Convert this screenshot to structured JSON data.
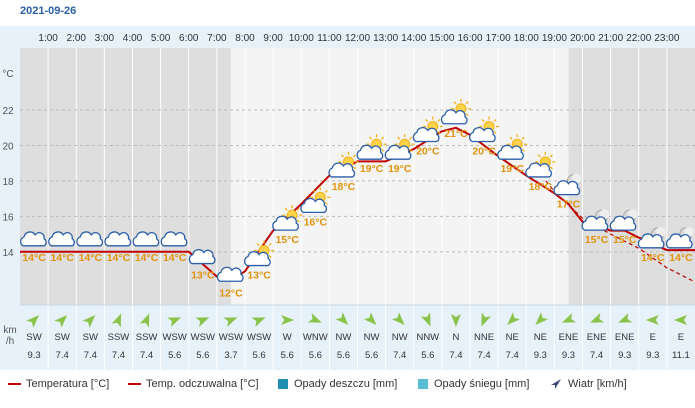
{
  "date": "2021-09-26",
  "colors": {
    "temperature": "#c00000",
    "felt": "#c00000",
    "rain": "#1f8fb0",
    "snow": "#5bbcd6",
    "wind": "#3a4a78",
    "panel": "#e6f1fa",
    "night": "#dedede",
    "day": "#f4f4f4",
    "arrow": "#8bc34a",
    "label": "#e0930c"
  },
  "chart_data": {
    "type": "line",
    "hours": [
      "1:00",
      "2:00",
      "3:00",
      "4:00",
      "5:00",
      "6:00",
      "7:00",
      "8:00",
      "9:00",
      "10:00",
      "11:00",
      "12:00",
      "13:00",
      "14:00",
      "15:00",
      "16:00",
      "17:00",
      "18:00",
      "19:00",
      "20:00",
      "21:00",
      "22:00",
      "23:00"
    ],
    "y_unit": "°C",
    "y_ticks": [
      14,
      16,
      18,
      20,
      22
    ],
    "ylim": [
      11,
      25.5
    ],
    "xlim": [
      0,
      24
    ],
    "grid": true,
    "series": [
      {
        "name": "Temperatura [°C]",
        "style": "solid",
        "x": [
          0,
          1,
          2,
          3,
          4,
          5,
          6,
          7,
          7.5,
          8,
          9,
          10,
          11,
          12,
          13,
          14,
          15,
          15.5,
          16,
          17,
          18,
          19,
          19.5,
          20,
          21,
          21.5,
          22,
          23,
          24
        ],
        "values": [
          14,
          14,
          14,
          14,
          14,
          14,
          14,
          12.6,
          12.4,
          12.9,
          15.2,
          16.7,
          18.3,
          19.1,
          19.1,
          19.8,
          20.8,
          21.0,
          20.6,
          19.4,
          18.3,
          17.3,
          16.7,
          15.7,
          15.2,
          15.2,
          14.8,
          14.1,
          14.1
        ]
      },
      {
        "name": "Temp. odczuwalna [°C]",
        "style": "dashed",
        "x": [
          18.7,
          19,
          20,
          21,
          22,
          23,
          24
        ],
        "values": [
          18.0,
          17.4,
          15.9,
          15.0,
          14.2,
          13.1,
          12.3
        ]
      }
    ],
    "point_labels": [
      {
        "x": 0.5,
        "value": 14,
        "label": "14°C",
        "icon": "partly-cloudy-icon"
      },
      {
        "x": 1.5,
        "value": 14,
        "label": "14°C",
        "icon": "cloud-icon"
      },
      {
        "x": 2.5,
        "value": 14,
        "label": "14°C",
        "icon": "cloud-icon"
      },
      {
        "x": 3.5,
        "value": 14,
        "label": "14°C",
        "icon": "cloud-icon"
      },
      {
        "x": 4.5,
        "value": 14,
        "label": "14°C",
        "icon": "cloud-icon"
      },
      {
        "x": 5.5,
        "value": 14,
        "label": "14°C",
        "icon": "cloud-icon"
      },
      {
        "x": 6.5,
        "value": 13,
        "label": "13°C",
        "icon": "cloud-icon"
      },
      {
        "x": 7.5,
        "value": 12,
        "label": "12°C",
        "icon": "cloud-icon"
      },
      {
        "x": 8.5,
        "value": 13,
        "label": "13°C",
        "icon": "sun-cloud-icon"
      },
      {
        "x": 9.5,
        "value": 15,
        "label": "15°C",
        "icon": "sun-cloud-icon"
      },
      {
        "x": 10.5,
        "value": 16,
        "label": "16°C",
        "icon": "sun-cloud-icon"
      },
      {
        "x": 11.5,
        "value": 18,
        "label": "18°C",
        "icon": "sun-cloud-icon"
      },
      {
        "x": 12.5,
        "value": 19,
        "label": "19°C",
        "icon": "sun-cloud-icon"
      },
      {
        "x": 13.5,
        "value": 19,
        "label": "19°C",
        "icon": "sun-cloud-icon"
      },
      {
        "x": 14.5,
        "value": 20,
        "label": "20°C",
        "icon": "sun-cloud-icon"
      },
      {
        "x": 15.5,
        "value": 21,
        "label": "21°C",
        "icon": "sun-cloud-icon"
      },
      {
        "x": 16.5,
        "value": 20,
        "label": "20°C",
        "icon": "sun-cloud-icon"
      },
      {
        "x": 17.5,
        "value": 19,
        "label": "19°C",
        "icon": "sun-cloud-icon"
      },
      {
        "x": 18.5,
        "value": 18,
        "label": "18°C",
        "icon": "sun-cloud-icon"
      },
      {
        "x": 19.5,
        "value": 17,
        "label": "17°C",
        "icon": "moon-cloud-icon"
      },
      {
        "x": 20.5,
        "value": 15,
        "label": "15°C",
        "icon": "moon-cloud-icon"
      },
      {
        "x": 21.5,
        "value": 15,
        "label": "15°C",
        "icon": "moon-cloud-icon"
      },
      {
        "x": 22.5,
        "value": 14,
        "label": "14°C",
        "icon": "moon-cloud-icon"
      },
      {
        "x": 23.5,
        "value": 14,
        "label": "14°C",
        "icon": "moon-cloud-icon"
      }
    ],
    "wind": {
      "unit": "km\n/h",
      "directions": [
        "SW",
        "SW",
        "SW",
        "SSW",
        "SSW",
        "WSW",
        "WSW",
        "WSW",
        "WSW",
        "W",
        "WNW",
        "NW",
        "NW",
        "NW",
        "NNW",
        "N",
        "NNE",
        "NE",
        "NE",
        "ENE",
        "ENE",
        "ENE",
        "E",
        "E"
      ],
      "speeds": [
        9.3,
        7.4,
        7.4,
        7.4,
        7.4,
        5.6,
        5.6,
        3.7,
        5.6,
        5.6,
        5.6,
        5.6,
        5.6,
        7.4,
        5.6,
        7.4,
        7.4,
        7.4,
        9.3,
        9.3,
        7.4,
        9.3,
        9.3,
        11.1
      ]
    }
  },
  "legend": [
    {
      "label": "Temperatura [°C]",
      "swatch": "line"
    },
    {
      "label": "Temp. odczuwalna [°C]",
      "swatch": "line"
    },
    {
      "label": "Opady deszczu [mm]",
      "swatch": "rain"
    },
    {
      "label": "Opady śniegu [mm]",
      "swatch": "snow"
    },
    {
      "label": "Wiatr [km/h]",
      "swatch": "wind"
    }
  ]
}
